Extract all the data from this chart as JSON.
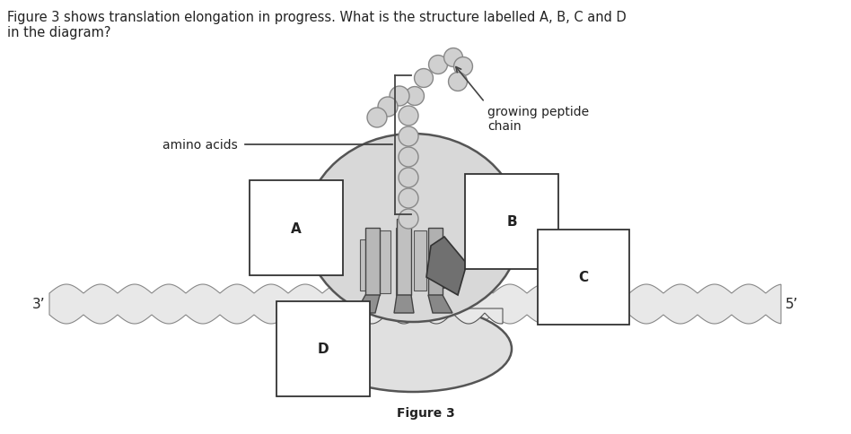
{
  "title_text": "Figure 3 shows translation elongation in progress. What is the structure labelled A, B, C and D\nin the diagram?",
  "figure_label": "Figure 3",
  "label_A": "A",
  "label_B": "B",
  "label_C": "C",
  "label_D": "D",
  "label_amino_acids": "amino acids",
  "label_growing_peptide": "growing peptide\nchain",
  "label_3prime": "3’",
  "label_5prime": "5’",
  "bg_color": "#ffffff",
  "ribosome_color": "#d8d8d8",
  "ribosome_edge": "#555555",
  "ribosome_inner": "#e8e8e8",
  "mrna_color": "#e8e8e8",
  "mrna_edge": "#888888",
  "bead_color": "#d0d0d0",
  "bead_edge": "#888888",
  "tRNA_gray": "#aaaaaa",
  "tRNA_dark": "#888888",
  "tRNA_edge": "#444444",
  "arrow_color": "#444444",
  "box_color": "#ffffff",
  "box_edge": "#333333",
  "text_color": "#222222",
  "font_size_title": 10.5,
  "font_size_label": 10,
  "font_size_box": 11,
  "font_size_prime": 11
}
